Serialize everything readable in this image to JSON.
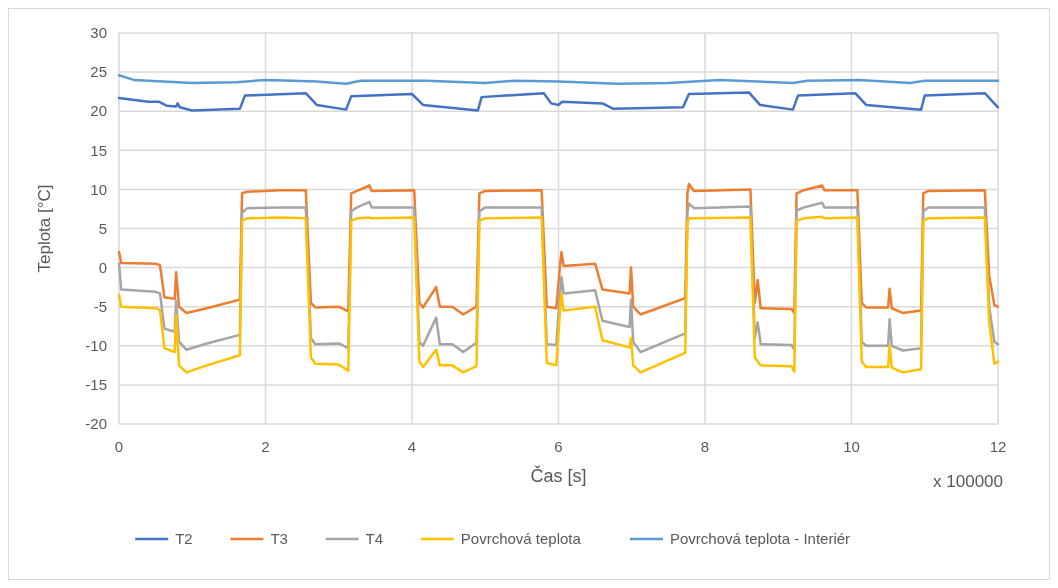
{
  "chart_data": {
    "type": "line",
    "xlabel": "Čas [s]",
    "ylabel": "Teplota [°C]",
    "annotations": [
      "x 100000"
    ],
    "xlim": [
      0,
      12
    ],
    "xticks": [
      0,
      2,
      4,
      6,
      8,
      10,
      12
    ],
    "ylim": [
      -20,
      30
    ],
    "yticks": [
      -20,
      -15,
      -10,
      -5,
      0,
      5,
      10,
      15,
      20,
      25,
      30
    ],
    "grid": true,
    "legend": "bottom",
    "marker": "none",
    "line_style": "solid",
    "series": [
      {
        "name": "T2",
        "color": "#4472c4",
        "x": [
          0,
          0.4,
          0.55,
          0.65,
          0.78,
          0.8,
          0.83,
          1.0,
          1.65,
          1.72,
          2.55,
          2.7,
          3.1,
          3.17,
          4.0,
          4.15,
          4.9,
          4.95,
          5.8,
          5.9,
          6.0,
          6.05,
          6.6,
          6.75,
          7.7,
          7.78,
          8.6,
          8.75,
          9.2,
          9.27,
          10.05,
          10.2,
          10.95,
          11.0,
          11.82,
          12.0
        ],
        "values": [
          21.7,
          21.2,
          21.2,
          20.7,
          20.6,
          21.0,
          20.5,
          20.1,
          20.3,
          22.0,
          22.3,
          20.8,
          20.2,
          21.9,
          22.2,
          20.8,
          20.1,
          21.8,
          22.3,
          21.0,
          20.8,
          21.2,
          21.0,
          20.3,
          20.5,
          22.2,
          22.4,
          20.8,
          20.2,
          22.0,
          22.3,
          20.8,
          20.2,
          22.0,
          22.3,
          20.5
        ]
      },
      {
        "name": "T3",
        "color": "#ed7d31",
        "x": [
          0,
          0.03,
          0.5,
          0.56,
          0.62,
          0.76,
          0.78,
          0.82,
          0.92,
          1.2,
          1.65,
          1.68,
          1.75,
          2.2,
          2.55,
          2.62,
          2.68,
          3.0,
          3.13,
          3.17,
          3.25,
          3.42,
          3.45,
          4.03,
          4.1,
          4.15,
          4.33,
          4.38,
          4.55,
          4.7,
          4.88,
          4.92,
          5.0,
          5.77,
          5.84,
          5.97,
          6.02,
          6.04,
          6.07,
          6.5,
          6.6,
          6.97,
          6.99,
          7.02,
          7.12,
          7.73,
          7.76,
          7.78,
          7.85,
          8.62,
          8.68,
          8.72,
          8.76,
          9.18,
          9.22,
          9.25,
          9.35,
          9.6,
          9.63,
          10.08,
          10.14,
          10.2,
          10.5,
          10.52,
          10.55,
          10.7,
          10.95,
          10.98,
          11.05,
          11.82,
          11.88,
          11.95,
          12.0
        ],
        "values": [
          2.0,
          0.6,
          0.5,
          0.3,
          -3.8,
          -4.0,
          -0.6,
          -5.0,
          -5.8,
          -5.2,
          -4.1,
          9.5,
          9.7,
          9.9,
          9.9,
          -4.5,
          -5.1,
          -5.0,
          -5.6,
          9.5,
          9.8,
          10.5,
          9.8,
          9.9,
          -4.5,
          -5.1,
          -2.5,
          -5.0,
          -5.0,
          -6.0,
          -5.0,
          9.5,
          9.8,
          9.9,
          -5.0,
          -5.2,
          0.2,
          2.0,
          0.2,
          0.5,
          -2.8,
          -3.3,
          0,
          -5.0,
          -6.0,
          -3.9,
          9.5,
          10.7,
          9.8,
          10.0,
          -4.5,
          -1.6,
          -5.2,
          -5.3,
          -5.8,
          9.5,
          9.9,
          10.5,
          9.9,
          9.9,
          -4.5,
          -5.1,
          -5.1,
          -2.7,
          -5.2,
          -5.8,
          -5.5,
          9.5,
          9.8,
          9.9,
          -1.0,
          -4.8,
          -5.0
        ]
      },
      {
        "name": "T4",
        "color": "#a5a5a5",
        "x": [
          0,
          0.03,
          0.5,
          0.56,
          0.62,
          0.76,
          0.78,
          0.82,
          0.92,
          1.2,
          1.65,
          1.68,
          1.75,
          2.2,
          2.55,
          2.62,
          2.68,
          3.0,
          3.13,
          3.17,
          3.25,
          3.42,
          3.45,
          4.03,
          4.1,
          4.15,
          4.33,
          4.38,
          4.55,
          4.7,
          4.88,
          4.92,
          5.0,
          5.77,
          5.84,
          5.97,
          6.02,
          6.04,
          6.07,
          6.5,
          6.6,
          6.97,
          6.99,
          7.02,
          7.12,
          7.73,
          7.76,
          7.78,
          7.85,
          8.62,
          8.68,
          8.72,
          8.76,
          9.18,
          9.22,
          9.25,
          9.35,
          9.6,
          9.63,
          10.08,
          10.14,
          10.2,
          10.5,
          10.52,
          10.55,
          10.7,
          10.95,
          10.98,
          11.05,
          11.82,
          11.88,
          11.95,
          12.0
        ],
        "values": [
          0.5,
          -2.8,
          -3.1,
          -3.3,
          -7.8,
          -8.2,
          -4.2,
          -9.5,
          -10.5,
          -9.7,
          -8.6,
          7.0,
          7.6,
          7.7,
          7.7,
          -9.0,
          -9.8,
          -9.7,
          -10.3,
          7.2,
          7.7,
          8.4,
          7.7,
          7.7,
          -9.5,
          -10.0,
          -6.4,
          -9.8,
          -9.8,
          -10.8,
          -9.6,
          7.2,
          7.7,
          7.7,
          -9.8,
          -9.9,
          -3.5,
          -1.2,
          -3.3,
          -2.9,
          -6.8,
          -7.6,
          -4.1,
          -9.5,
          -10.8,
          -8.4,
          7.0,
          8.2,
          7.6,
          7.8,
          -9.0,
          -7.0,
          -9.8,
          -9.9,
          -10.5,
          7.3,
          7.7,
          8.3,
          7.7,
          7.7,
          -9.5,
          -10.0,
          -10.0,
          -6.6,
          -10.0,
          -10.6,
          -10.3,
          7.2,
          7.7,
          7.7,
          -5.0,
          -9.5,
          -9.8
        ]
      },
      {
        "name": "Povrchová teplota",
        "color": "#ffc000",
        "x": [
          0,
          0.03,
          0.5,
          0.56,
          0.62,
          0.76,
          0.78,
          0.82,
          0.92,
          1.2,
          1.65,
          1.68,
          1.75,
          2.2,
          2.55,
          2.62,
          2.68,
          3.0,
          3.13,
          3.17,
          3.25,
          3.42,
          3.45,
          4.03,
          4.1,
          4.15,
          4.33,
          4.38,
          4.55,
          4.7,
          4.88,
          4.92,
          5.0,
          5.77,
          5.84,
          5.97,
          6.02,
          6.04,
          6.07,
          6.5,
          6.6,
          6.97,
          6.99,
          7.02,
          7.12,
          7.73,
          7.76,
          7.78,
          7.85,
          8.62,
          8.68,
          8.72,
          8.76,
          9.18,
          9.22,
          9.25,
          9.35,
          9.6,
          9.63,
          10.08,
          10.14,
          10.2,
          10.5,
          10.52,
          10.55,
          10.7,
          10.95,
          10.98,
          11.05,
          11.82,
          11.88,
          11.95,
          12.0
        ],
        "values": [
          -3.5,
          -5.0,
          -5.2,
          -5.4,
          -10.3,
          -10.8,
          -6.0,
          -12.5,
          -13.4,
          -12.5,
          -11.2,
          6.0,
          6.3,
          6.4,
          6.3,
          -11.5,
          -12.3,
          -12.4,
          -13.2,
          6.0,
          6.3,
          6.4,
          6.3,
          6.4,
          -12.0,
          -12.7,
          -10.5,
          -12.5,
          -12.5,
          -13.4,
          -12.6,
          6.0,
          6.3,
          6.4,
          -12.2,
          -12.5,
          -5.6,
          -3.3,
          -5.5,
          -5.0,
          -9.3,
          -10.2,
          -9.0,
          -12.5,
          -13.4,
          -10.9,
          5.8,
          6.3,
          6.3,
          6.4,
          -11.5,
          -12.0,
          -12.5,
          -12.6,
          -13.3,
          6.0,
          6.3,
          6.5,
          6.3,
          6.4,
          -12.0,
          -12.7,
          -12.7,
          -10.0,
          -12.8,
          -13.4,
          -13.0,
          6.0,
          6.3,
          6.4,
          -7.0,
          -12.3,
          -12.0
        ]
      },
      {
        "name": "Povrchová teplota - Interiér",
        "color": "#5b9bd5",
        "x": [
          0,
          0.2,
          1.0,
          1.6,
          2.0,
          2.7,
          3.1,
          3.3,
          4.2,
          5.0,
          5.4,
          6.0,
          6.8,
          7.5,
          8.2,
          9.2,
          9.4,
          10.1,
          10.8,
          11.0,
          12.0
        ],
        "values": [
          24.6,
          24.0,
          23.6,
          23.7,
          24.0,
          23.8,
          23.5,
          23.9,
          23.9,
          23.6,
          23.9,
          23.8,
          23.5,
          23.6,
          24.0,
          23.6,
          23.9,
          24.0,
          23.6,
          23.9,
          23.9
        ]
      }
    ]
  }
}
